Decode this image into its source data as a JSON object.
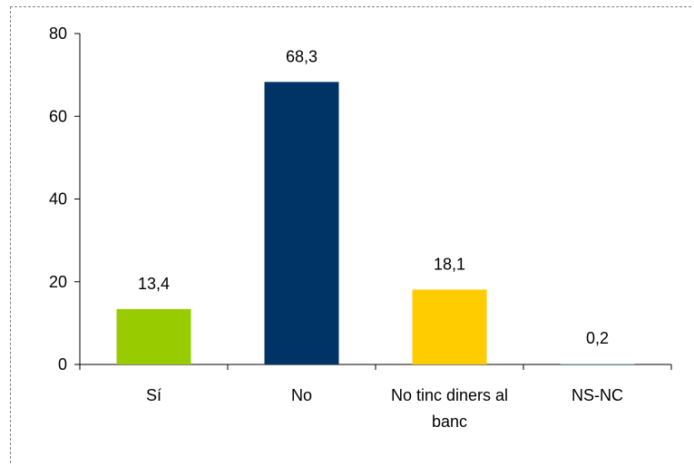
{
  "chart_data": {
    "type": "bar",
    "categories": [
      [
        "Sí"
      ],
      [
        "No"
      ],
      [
        "No tinc diners al",
        "banc"
      ],
      [
        "NS-NC"
      ]
    ],
    "values": [
      13.4,
      68.3,
      18.1,
      0.2
    ],
    "value_labels": [
      "13,4",
      "68,3",
      "18,1",
      "0,2"
    ],
    "colors": [
      "#99cc00",
      "#003366",
      "#ffcc00",
      "#99cccc"
    ],
    "ylim": [
      0,
      80
    ],
    "yticks": [
      0,
      20,
      40,
      60,
      80
    ],
    "ytick_labels": [
      "0",
      "20",
      "40",
      "60",
      "80"
    ],
    "grid": false,
    "legend": "none"
  }
}
